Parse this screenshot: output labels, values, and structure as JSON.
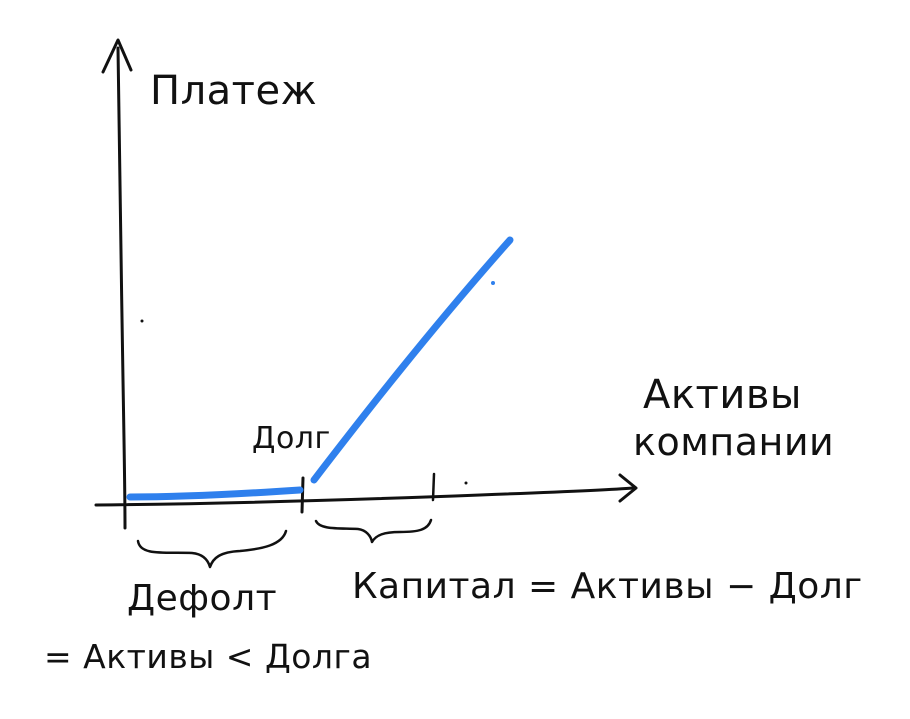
{
  "diagram": {
    "y_axis_label": "Платеж",
    "x_axis_label_line1": "Активы",
    "x_axis_label_line2": "компании",
    "debt_marker_label": "Долг",
    "default_label_line1": "Дефолт",
    "default_label_line2": "= Активы < Долга",
    "capital_label": "Капитал = Активы − Долг",
    "colors": {
      "ink": "#111111",
      "payoff_line": "#2f80ed",
      "background": "#ffffff"
    }
  }
}
